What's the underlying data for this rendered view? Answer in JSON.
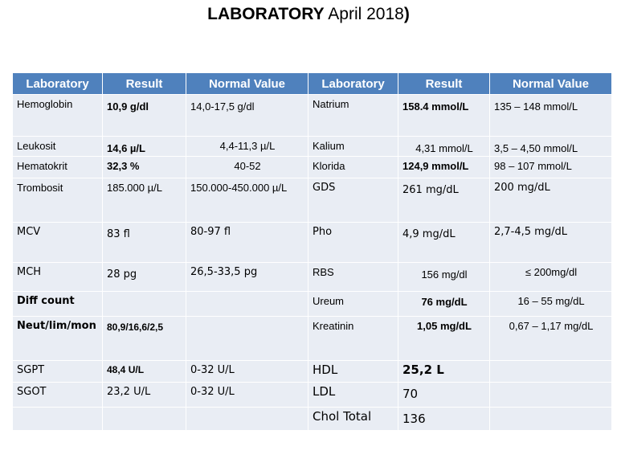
{
  "title": {
    "bold": "LABORATORY",
    "rest": " April 2018",
    "paren": ")"
  },
  "headers": [
    "Laboratory",
    "Result",
    "Normal Value",
    "Laboratory",
    "Result",
    "Normal Value"
  ],
  "rows": [
    [
      "Hemoglobin",
      "10,9 g/dl",
      "14,0-17,5 g/dl",
      "Natrium",
      "158.4 mmol/L",
      "135 – 148 mmol/L"
    ],
    [
      "Leukosit",
      "14,6 µ/L",
      "4,4-11,3 µ/L",
      "Kalium",
      "4,31 mmol/L",
      "3,5 – 4,50 mmol/L"
    ],
    [
      "Hematokrit",
      "32,3 %",
      "40-52",
      "Klorida",
      "124,9 mmol/L",
      "98 – 107 mmol/L"
    ],
    [
      "Trombosit",
      "185.000 µ/L",
      "150.000-450.000 µ/L",
      "GDS",
      "261 mg/dL",
      "200 mg/dL"
    ],
    [
      "MCV",
      "83 fl",
      "80-97 fl",
      "Pho",
      "4,9 mg/dL",
      "2,7-4,5  mg/dL"
    ],
    [
      "MCH",
      "28 pg",
      "26,5-33,5 pg",
      "RBS",
      "156 mg/dl",
      "≤ 200mg/dl"
    ],
    [
      "Diff count",
      "",
      "",
      "Ureum",
      "76 mg/dL",
      "16 – 55 mg/dL"
    ],
    [
      "Neut/lim/mon",
      "80,9/16,6/2,5",
      "",
      "Kreatinin",
      "1,05 mg/dL",
      "0,67 – 1,17 mg/dL"
    ],
    [
      "SGPT",
      "48,4 U/L",
      "0-32 U/L",
      "HDL",
      "25,2 L",
      ""
    ],
    [
      "SGOT",
      "23,2 U/L",
      "0-32 U/L",
      "LDL",
      "70",
      ""
    ],
    [
      "",
      "",
      "",
      "Chol Total",
      "136",
      ""
    ]
  ]
}
